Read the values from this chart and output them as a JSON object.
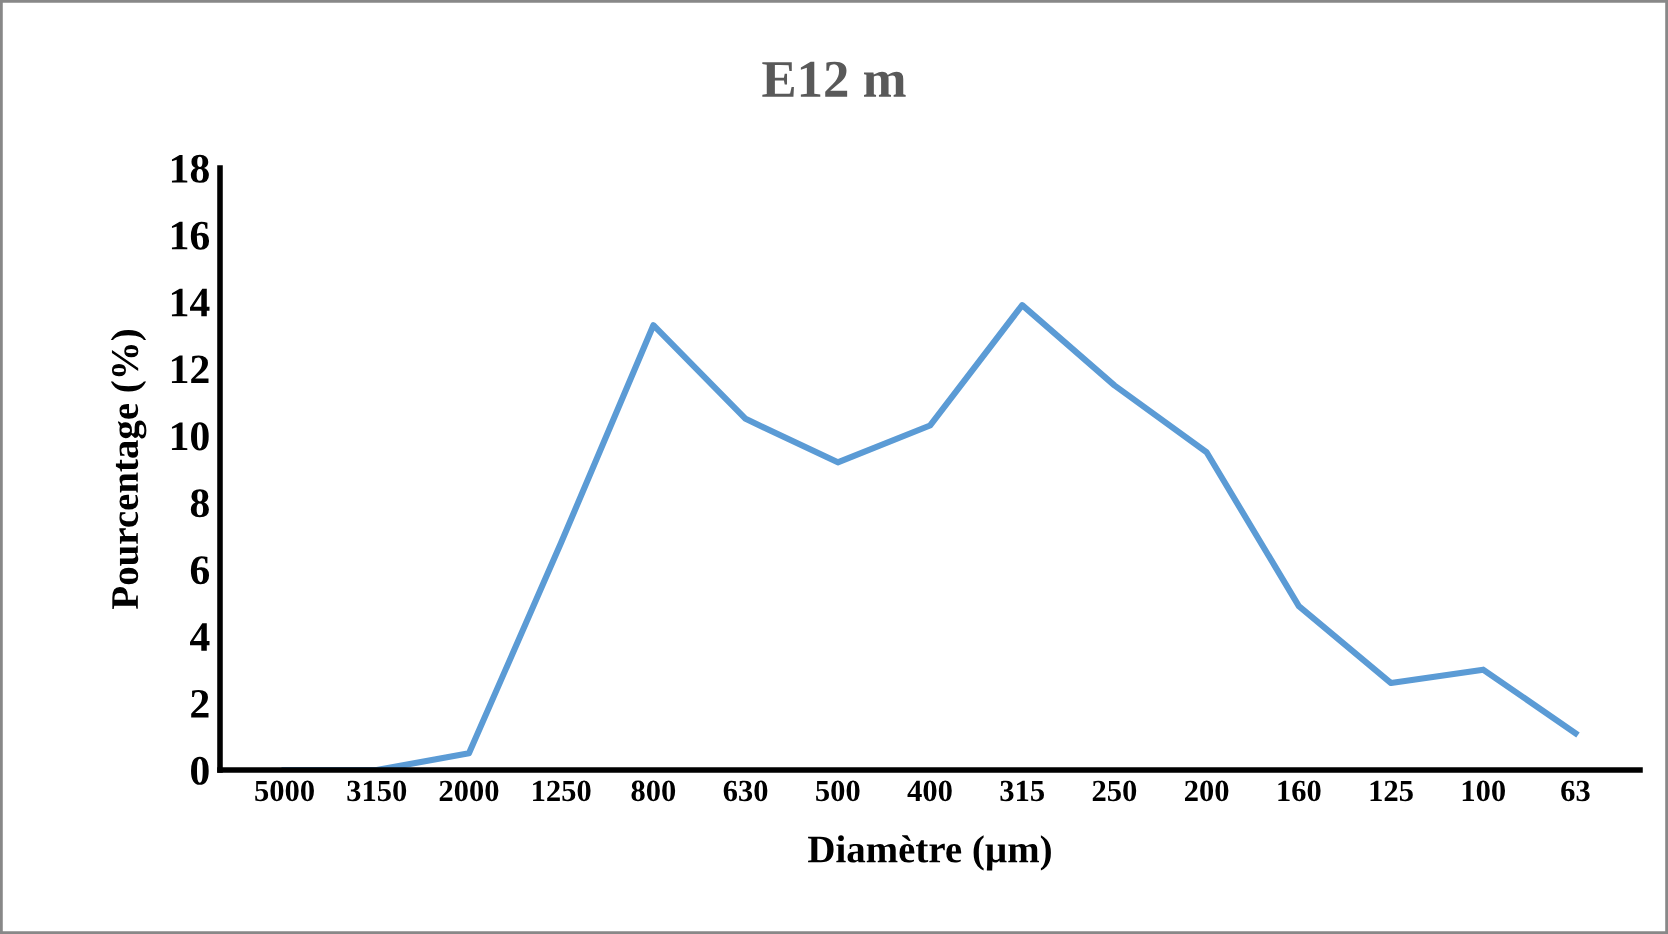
{
  "chart_data": {
    "type": "line",
    "title": "E12 m",
    "xlabel": "Diamètre (µm)",
    "ylabel": "Pourcentage (%)",
    "categories": [
      "5000",
      "3150",
      "2000",
      "1250",
      "800",
      "630",
      "500",
      "400",
      "315",
      "250",
      "200",
      "160",
      "125",
      "100",
      "63"
    ],
    "series": [
      {
        "color": "#5b9bd5",
        "values": [
          0,
          0,
          0.5,
          6.8,
          13.3,
          10.5,
          9.2,
          10.3,
          13.9,
          11.5,
          9.5,
          4.9,
          2.6,
          3.0,
          1.1
        ]
      }
    ],
    "ylim": [
      0,
      18
    ],
    "yticks": [
      0,
      2,
      4,
      6,
      8,
      10,
      12,
      14,
      16,
      18
    ],
    "grid": false,
    "legend": false,
    "marker": "none",
    "line_style": "solid"
  }
}
